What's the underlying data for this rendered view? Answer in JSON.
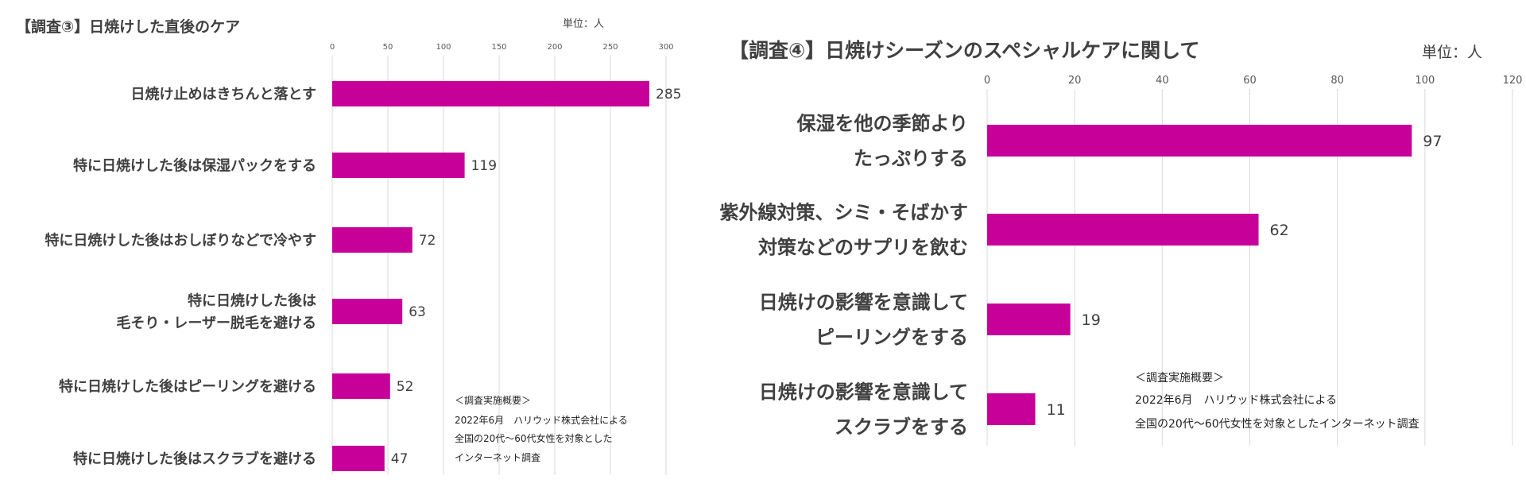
{
  "accent_color": "#C8009A",
  "charts": [
    {
      "title": "【調査③】日焼けした直後のケア",
      "unit": "単位：人",
      "note": [
        "＜調査実施概要＞",
        "2022年6月　ハリウッド株式会社による",
        "全国の20代〜60代女性を対象とした",
        "インターネット調査"
      ]
    },
    {
      "title": "【調査④】日焼けシーズンのスペシャルケアに関して",
      "unit": "単位：人",
      "note": [
        "＜調査実施概要＞",
        "2022年6月　ハリウッド株式会社による",
        "全国の20代〜60代女性を対象としたインターネット調査"
      ]
    }
  ],
  "chart_data": [
    {
      "type": "bar",
      "orientation": "horizontal",
      "title": "【調査③】日焼けした直後のケア",
      "xlabel": "単位：人",
      "xlim": [
        0,
        300
      ],
      "ticks": [
        0,
        50,
        100,
        150,
        200,
        250,
        300
      ],
      "grid": true,
      "categories": [
        [
          "日焼け止めはきちんと落とす"
        ],
        [
          "特に日焼けした後は保湿パックをする"
        ],
        [
          "特に日焼けした後はおしぼりなどで冷やす"
        ],
        [
          "特に日焼けした後は",
          "毛そり・レーザー脱毛を避ける"
        ],
        [
          "特に日焼けした後はピーリングを避ける"
        ],
        [
          "特に日焼けした後はスクラブを避ける"
        ]
      ],
      "values": [
        285,
        119,
        72,
        63,
        52,
        47
      ],
      "color": "#C8009A"
    },
    {
      "type": "bar",
      "orientation": "horizontal",
      "title": "【調査④】日焼けシーズンのスペシャルケアに関して",
      "xlabel": "単位：人",
      "xlim": [
        0,
        120
      ],
      "ticks": [
        0,
        20,
        40,
        60,
        80,
        100,
        120
      ],
      "grid": true,
      "categories": [
        [
          "保湿を他の季節より",
          "たっぷりする"
        ],
        [
          "紫外線対策、シミ・そばかす",
          "対策などのサプリを飲む"
        ],
        [
          "日焼けの影響を意識して",
          "ピーリングをする"
        ],
        [
          "日焼けの影響を意識して",
          "スクラブをする"
        ]
      ],
      "values": [
        97,
        62,
        19,
        11
      ],
      "color": "#C8009A"
    }
  ]
}
